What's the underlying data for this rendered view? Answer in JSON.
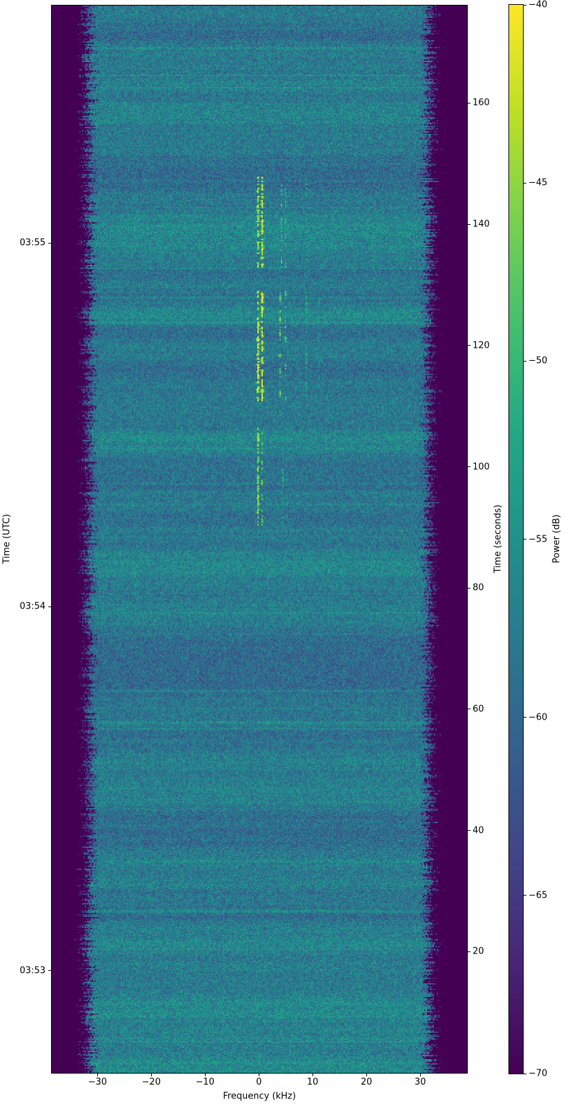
{
  "figure": {
    "background": "#ffffff"
  },
  "chart_data": {
    "type": "heatmap",
    "subtype": "spectrogram-waterfall",
    "title": "",
    "xlabel": "Frequency (kHz)",
    "ylabel_left": "Time (UTC)",
    "ylabel_right": "Time (seconds)",
    "colorbar_label": "Power (dB)",
    "x_range_khz": [
      -38.5,
      38.7
    ],
    "t_range_s": [
      0,
      176.1
    ],
    "power_range_db": [
      -70,
      -40
    ],
    "grid": false,
    "x_ticks": [
      {
        "v": -30,
        "label": "−30"
      },
      {
        "v": -20,
        "label": "−20"
      },
      {
        "v": -10,
        "label": "−10"
      },
      {
        "v": 0,
        "label": "0"
      },
      {
        "v": 10,
        "label": "10"
      },
      {
        "v": 20,
        "label": "20"
      },
      {
        "v": 30,
        "label": "30"
      }
    ],
    "utc_ticks": [
      {
        "t": 136.9,
        "label": "03:55"
      },
      {
        "t": 76.9,
        "label": "03:54"
      },
      {
        "t": 16.9,
        "label": "03:53"
      }
    ],
    "seconds_ticks": [
      {
        "t": 160,
        "label": "160"
      },
      {
        "t": 140,
        "label": "140"
      },
      {
        "t": 120,
        "label": "120"
      },
      {
        "t": 100,
        "label": "100"
      },
      {
        "t": 80,
        "label": "80"
      },
      {
        "t": 60,
        "label": "60"
      },
      {
        "t": 40,
        "label": "40"
      },
      {
        "t": 20,
        "label": "20"
      }
    ],
    "colorbar_ticks": [
      {
        "v": -40,
        "label": "−40"
      },
      {
        "v": -45,
        "label": "−45"
      },
      {
        "v": -50,
        "label": "−50"
      },
      {
        "v": -55,
        "label": "−55"
      },
      {
        "v": -60,
        "label": "−60"
      },
      {
        "v": -65,
        "label": "−65"
      },
      {
        "v": -70,
        "label": "−70"
      }
    ],
    "colormap": {
      "name": "viridis",
      "stops": [
        "#440154",
        "#482475",
        "#414487",
        "#355f8d",
        "#2a788e",
        "#21918c",
        "#22a884",
        "#44bf70",
        "#7ad151",
        "#bddf26",
        "#fde725"
      ]
    },
    "noise": {
      "seed": 1337,
      "floor_db": -57.5,
      "speckle_amplitude_db": 4.5,
      "band_edge_khz": 30.5,
      "edge_rolloff_khz": 3.5,
      "stripe_probability": 0.03,
      "stripe_boost_db": 2.0
    },
    "signals": [
      {
        "t_start_s": 133,
        "t_end_s": 148,
        "lines": [
          {
            "f_khz": -0.4,
            "peak_db": -43
          },
          {
            "f_khz": 0.5,
            "peak_db": -42
          },
          {
            "f_khz": 4.1,
            "peak_db": -49
          },
          {
            "f_khz": 4.9,
            "peak_db": -51
          },
          {
            "f_khz": 8.7,
            "peak_db": -53
          }
        ]
      },
      {
        "t_start_s": 111,
        "t_end_s": 129,
        "lines": [
          {
            "f_khz": -0.4,
            "peak_db": -41
          },
          {
            "f_khz": 0.5,
            "peak_db": -40
          },
          {
            "f_khz": 3.9,
            "peak_db": -46
          },
          {
            "f_khz": 4.9,
            "peak_db": -48
          },
          {
            "f_khz": 8.7,
            "peak_db": -51
          },
          {
            "f_khz": 10.9,
            "peak_db": -54
          }
        ]
      },
      {
        "t_start_s": 90.5,
        "t_end_s": 106.5,
        "lines": [
          {
            "f_khz": -0.3,
            "peak_db": -44
          },
          {
            "f_khz": 0.6,
            "peak_db": -47
          },
          {
            "f_khz": 4.3,
            "peak_db": -52
          },
          {
            "f_khz": 5.1,
            "peak_db": -54
          }
        ]
      }
    ]
  }
}
